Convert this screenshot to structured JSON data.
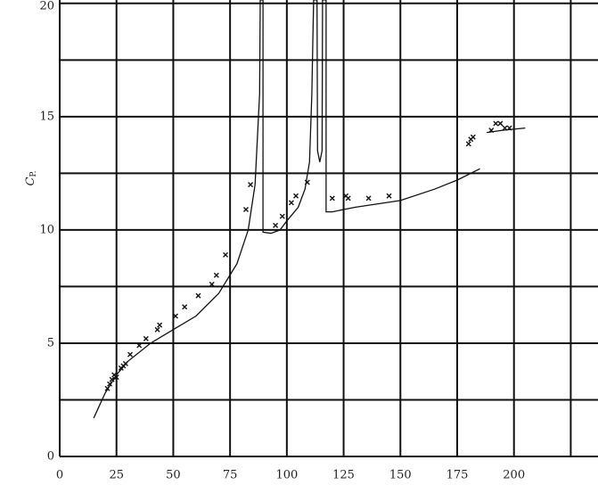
{
  "chart_data": {
    "type": "line",
    "ylabel": {
      "main": "C",
      "sub": "P."
    },
    "xlim": [
      0,
      237
    ],
    "ylim": [
      0,
      20.15
    ],
    "xticks": [
      0,
      25,
      50,
      75,
      100,
      125,
      150,
      175,
      200
    ],
    "yticks": [
      0,
      5,
      10,
      15,
      20
    ],
    "xgrid": [
      0,
      25,
      50,
      75,
      100,
      125,
      150,
      175,
      200,
      225
    ],
    "ygrid": [
      0,
      2.5,
      5,
      7.5,
      10,
      12.5,
      15,
      17.5,
      20
    ],
    "color": "#111",
    "line": {
      "x": [
        15,
        20,
        25,
        30,
        40,
        50,
        60,
        70,
        78,
        83,
        86,
        88,
        88.3,
        89.5,
        89.5,
        93,
        97,
        100,
        105,
        108,
        110,
        111,
        111.8,
        113.3,
        113.5,
        114.5,
        115.5,
        115.7,
        117.3,
        117.3,
        120,
        130,
        150,
        165,
        175,
        185,
        null,
        188,
        195,
        205
      ],
      "y": [
        1.7,
        2.8,
        3.6,
        4.2,
        5.0,
        5.6,
        6.2,
        7.2,
        8.5,
        10,
        12,
        16,
        20.15,
        20.15,
        9.9,
        9.85,
        10.0,
        10.4,
        11.0,
        11.8,
        13,
        16,
        20.15,
        20.15,
        13.5,
        13.0,
        13.5,
        20.15,
        20.15,
        10.8,
        10.8,
        11.0,
        11.3,
        11.8,
        12.2,
        12.7,
        null,
        14.3,
        14.4,
        14.5
      ]
    },
    "points": {
      "x": [
        21,
        22,
        23,
        24,
        25,
        27,
        28,
        29,
        31,
        35,
        38,
        43,
        44,
        51,
        55,
        61,
        67,
        69,
        73,
        82,
        84,
        95,
        98,
        102,
        104,
        109,
        120,
        126,
        127,
        136,
        145,
        180,
        181,
        182,
        190,
        192,
        194,
        196,
        198
      ],
      "y": [
        3.0,
        3.2,
        3.4,
        3.6,
        3.5,
        3.9,
        4.0,
        4.1,
        4.5,
        4.9,
        5.2,
        5.6,
        5.8,
        6.2,
        6.6,
        7.1,
        7.6,
        8.0,
        8.9,
        10.9,
        12.0,
        10.2,
        10.6,
        11.2,
        11.5,
        12.1,
        11.4,
        11.5,
        11.4,
        11.4,
        11.5,
        13.8,
        14.0,
        14.1,
        14.4,
        14.7,
        14.7,
        14.5,
        14.5
      ]
    }
  }
}
